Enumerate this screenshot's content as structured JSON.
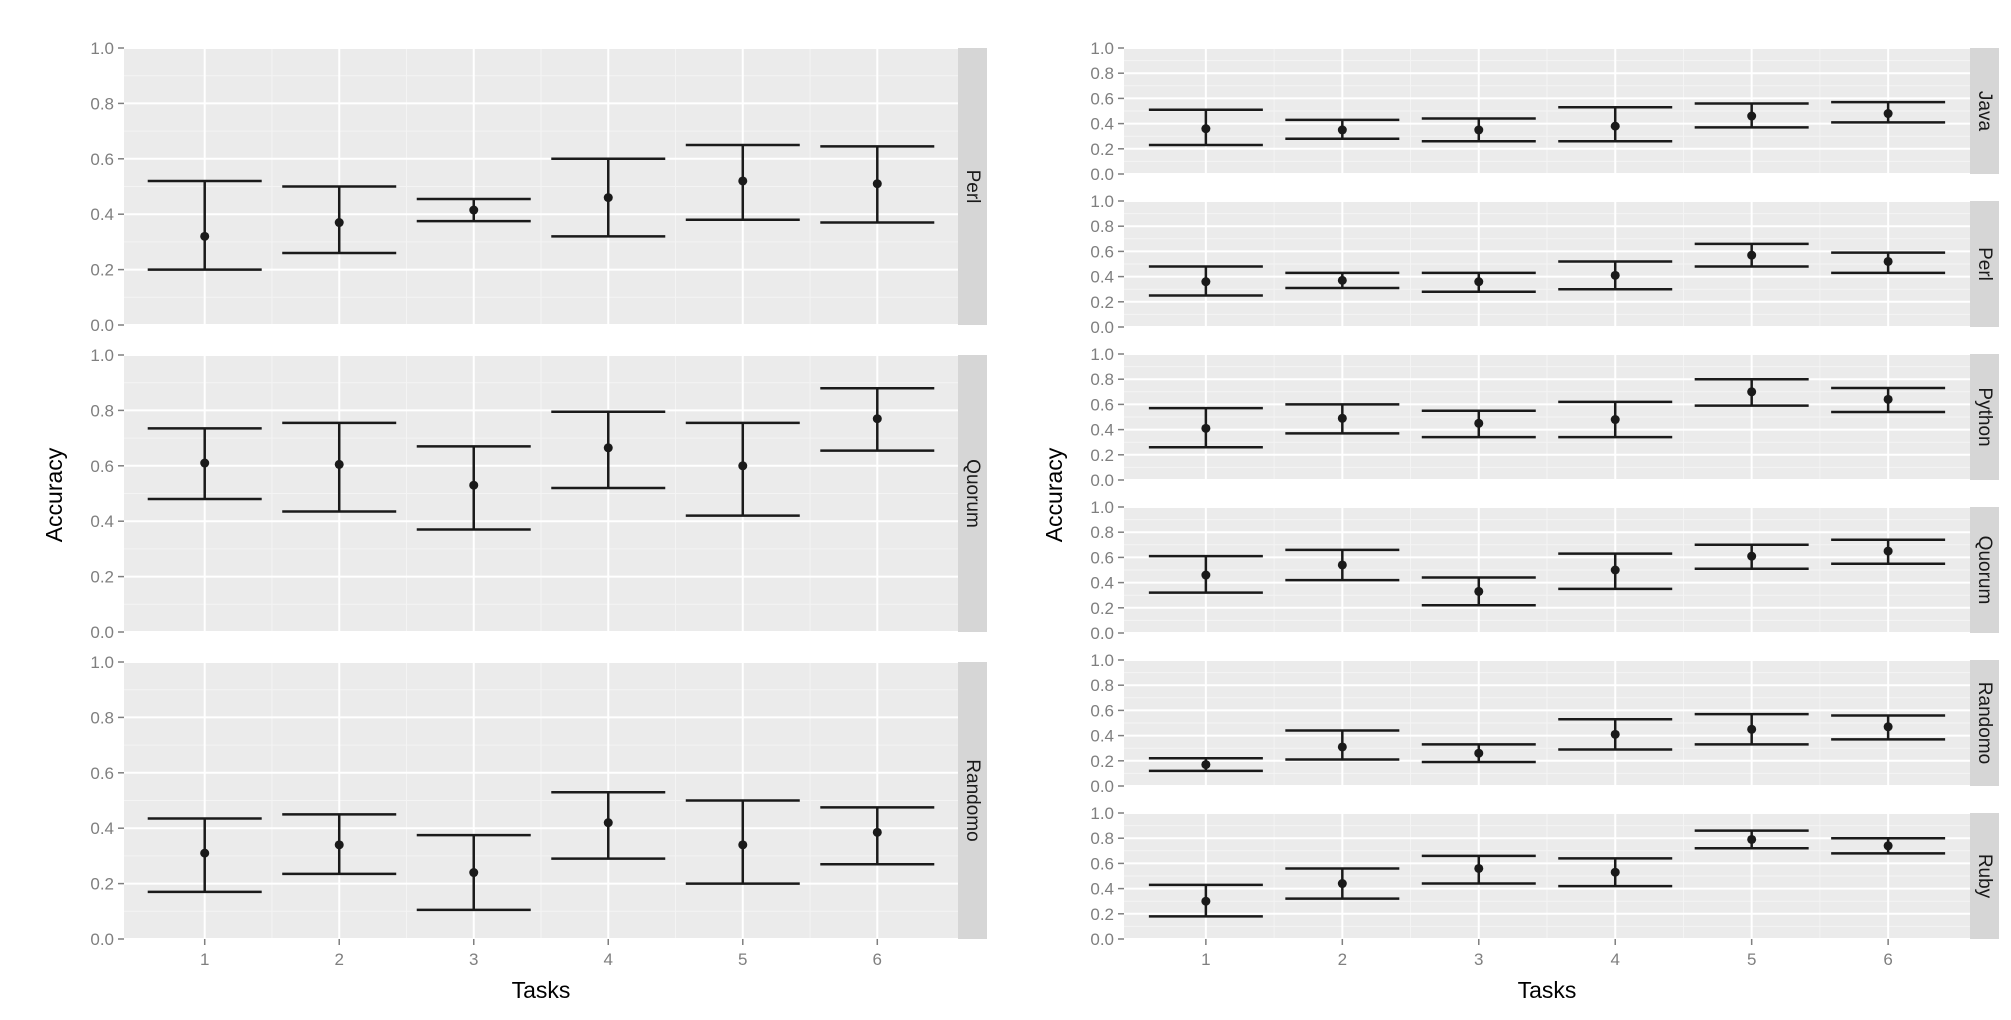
{
  "chart_data": [
    {
      "type": "errorbar",
      "xlabel": "Tasks",
      "ylabel": "Accuracy",
      "categories": [
        "1",
        "2",
        "3",
        "4",
        "5",
        "6"
      ],
      "ylim": [
        0,
        1
      ],
      "y_ticks": [
        "0.0",
        "0.2",
        "0.4",
        "0.6",
        "0.8",
        "1.0"
      ],
      "grid": true,
      "legend": "none",
      "facets": [
        {
          "name": "Perl",
          "points": [
            {
              "x": "1",
              "mean": 0.32,
              "low": 0.2,
              "high": 0.52
            },
            {
              "x": "2",
              "mean": 0.37,
              "low": 0.26,
              "high": 0.5
            },
            {
              "x": "3",
              "mean": 0.415,
              "low": 0.375,
              "high": 0.455
            },
            {
              "x": "4",
              "mean": 0.46,
              "low": 0.32,
              "high": 0.6
            },
            {
              "x": "5",
              "mean": 0.52,
              "low": 0.38,
              "high": 0.65
            },
            {
              "x": "6",
              "mean": 0.51,
              "low": 0.37,
              "high": 0.645
            }
          ]
        },
        {
          "name": "Quorum",
          "points": [
            {
              "x": "1",
              "mean": 0.61,
              "low": 0.48,
              "high": 0.735
            },
            {
              "x": "2",
              "mean": 0.605,
              "low": 0.435,
              "high": 0.755
            },
            {
              "x": "3",
              "mean": 0.53,
              "low": 0.37,
              "high": 0.67
            },
            {
              "x": "4",
              "mean": 0.665,
              "low": 0.52,
              "high": 0.795
            },
            {
              "x": "5",
              "mean": 0.6,
              "low": 0.42,
              "high": 0.755
            },
            {
              "x": "6",
              "mean": 0.77,
              "low": 0.655,
              "high": 0.88
            }
          ]
        },
        {
          "name": "Randomo",
          "points": [
            {
              "x": "1",
              "mean": 0.31,
              "low": 0.17,
              "high": 0.435
            },
            {
              "x": "2",
              "mean": 0.34,
              "low": 0.235,
              "high": 0.45
            },
            {
              "x": "3",
              "mean": 0.24,
              "low": 0.105,
              "high": 0.375
            },
            {
              "x": "4",
              "mean": 0.42,
              "low": 0.29,
              "high": 0.53
            },
            {
              "x": "5",
              "mean": 0.34,
              "low": 0.2,
              "high": 0.5
            },
            {
              "x": "6",
              "mean": 0.385,
              "low": 0.27,
              "high": 0.475
            }
          ]
        }
      ]
    },
    {
      "type": "errorbar",
      "xlabel": "Tasks",
      "ylabel": "Accuracy",
      "categories": [
        "1",
        "2",
        "3",
        "4",
        "5",
        "6"
      ],
      "ylim": [
        0,
        1
      ],
      "y_ticks": [
        "0.0",
        "0.2",
        "0.4",
        "0.6",
        "0.8",
        "1.0"
      ],
      "grid": true,
      "legend": "none",
      "facets": [
        {
          "name": "Java",
          "points": [
            {
              "x": "1",
              "mean": 0.36,
              "low": 0.23,
              "high": 0.51
            },
            {
              "x": "2",
              "mean": 0.35,
              "low": 0.28,
              "high": 0.43
            },
            {
              "x": "3",
              "mean": 0.35,
              "low": 0.26,
              "high": 0.44
            },
            {
              "x": "4",
              "mean": 0.38,
              "low": 0.26,
              "high": 0.53
            },
            {
              "x": "5",
              "mean": 0.46,
              "low": 0.37,
              "high": 0.56
            },
            {
              "x": "6",
              "mean": 0.48,
              "low": 0.41,
              "high": 0.57
            }
          ]
        },
        {
          "name": "Perl",
          "points": [
            {
              "x": "1",
              "mean": 0.36,
              "low": 0.25,
              "high": 0.48
            },
            {
              "x": "2",
              "mean": 0.37,
              "low": 0.31,
              "high": 0.43
            },
            {
              "x": "3",
              "mean": 0.36,
              "low": 0.28,
              "high": 0.43
            },
            {
              "x": "4",
              "mean": 0.41,
              "low": 0.3,
              "high": 0.52
            },
            {
              "x": "5",
              "mean": 0.57,
              "low": 0.48,
              "high": 0.66
            },
            {
              "x": "6",
              "mean": 0.52,
              "low": 0.43,
              "high": 0.59
            }
          ]
        },
        {
          "name": "Python",
          "points": [
            {
              "x": "1",
              "mean": 0.41,
              "low": 0.26,
              "high": 0.57
            },
            {
              "x": "2",
              "mean": 0.49,
              "low": 0.37,
              "high": 0.6
            },
            {
              "x": "3",
              "mean": 0.45,
              "low": 0.34,
              "high": 0.55
            },
            {
              "x": "4",
              "mean": 0.48,
              "low": 0.34,
              "high": 0.62
            },
            {
              "x": "5",
              "mean": 0.7,
              "low": 0.59,
              "high": 0.8
            },
            {
              "x": "6",
              "mean": 0.64,
              "low": 0.54,
              "high": 0.73
            }
          ]
        },
        {
          "name": "Quorum",
          "points": [
            {
              "x": "1",
              "mean": 0.46,
              "low": 0.32,
              "high": 0.61
            },
            {
              "x": "2",
              "mean": 0.54,
              "low": 0.42,
              "high": 0.66
            },
            {
              "x": "3",
              "mean": 0.33,
              "low": 0.22,
              "high": 0.44
            },
            {
              "x": "4",
              "mean": 0.5,
              "low": 0.35,
              "high": 0.63
            },
            {
              "x": "5",
              "mean": 0.61,
              "low": 0.51,
              "high": 0.7
            },
            {
              "x": "6",
              "mean": 0.65,
              "low": 0.55,
              "high": 0.74
            }
          ]
        },
        {
          "name": "Randomo",
          "points": [
            {
              "x": "1",
              "mean": 0.17,
              "low": 0.12,
              "high": 0.22
            },
            {
              "x": "2",
              "mean": 0.31,
              "low": 0.21,
              "high": 0.44
            },
            {
              "x": "3",
              "mean": 0.26,
              "low": 0.19,
              "high": 0.33
            },
            {
              "x": "4",
              "mean": 0.41,
              "low": 0.29,
              "high": 0.53
            },
            {
              "x": "5",
              "mean": 0.45,
              "low": 0.33,
              "high": 0.57
            },
            {
              "x": "6",
              "mean": 0.47,
              "low": 0.37,
              "high": 0.56
            }
          ]
        },
        {
          "name": "Ruby",
          "points": [
            {
              "x": "1",
              "mean": 0.3,
              "low": 0.18,
              "high": 0.43
            },
            {
              "x": "2",
              "mean": 0.44,
              "low": 0.32,
              "high": 0.56
            },
            {
              "x": "3",
              "mean": 0.56,
              "low": 0.44,
              "high": 0.66
            },
            {
              "x": "4",
              "mean": 0.53,
              "low": 0.42,
              "high": 0.64
            },
            {
              "x": "5",
              "mean": 0.79,
              "low": 0.72,
              "high": 0.86
            },
            {
              "x": "6",
              "mean": 0.74,
              "low": 0.68,
              "high": 0.8
            }
          ]
        }
      ]
    }
  ],
  "colors": {
    "panel_background": "#ebebeb",
    "strip_background": "#d6d6d6",
    "grid_major": "#ffffff",
    "grid_minor": "#f4f4f4",
    "marks": "#1a1a1a",
    "tick_text": "#7f7f7f"
  }
}
